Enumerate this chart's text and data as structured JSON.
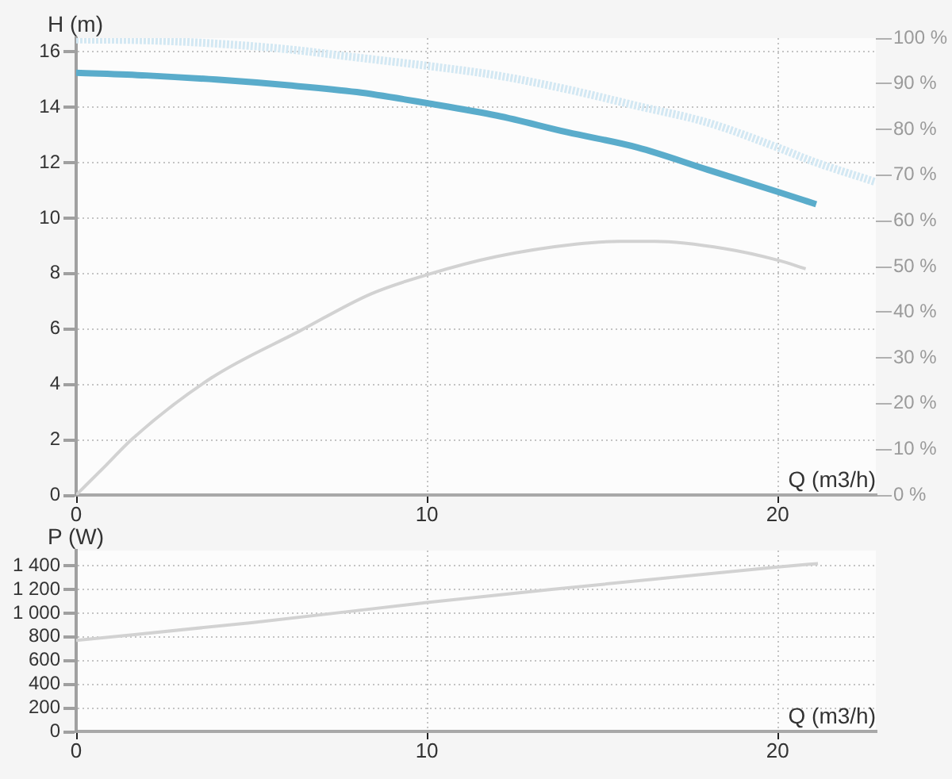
{
  "chart_data": [
    {
      "type": "line",
      "ylabel": "H (m)",
      "xlabel": "Q (m3/h)",
      "xlim": [
        0,
        22.8
      ],
      "xticks": [
        0,
        10,
        20
      ],
      "ylim": [
        0,
        16.5
      ],
      "yticks": [
        0,
        2,
        4,
        6,
        8,
        10,
        12,
        14,
        16
      ],
      "y2lim": [
        0,
        100
      ],
      "y2ticks": [
        {
          "value": 0,
          "label": "0 %"
        },
        {
          "value": 10,
          "label": "10 %"
        },
        {
          "value": 20,
          "label": "20 %"
        },
        {
          "value": 30,
          "label": "30 %"
        },
        {
          "value": 40,
          "label": "40 %"
        },
        {
          "value": 50,
          "label": "50 %"
        },
        {
          "value": 60,
          "label": "60 %"
        },
        {
          "value": 70,
          "label": "70 %"
        },
        {
          "value": 80,
          "label": "80 %"
        },
        {
          "value": 90,
          "label": "90 %"
        },
        {
          "value": 100,
          "label": "100 %"
        }
      ],
      "grid": true,
      "marker": "none",
      "series": [
        {
          "color": "#5aaccb",
          "x": [
            0,
            2,
            4,
            6,
            8,
            10,
            12,
            14,
            16,
            18,
            20,
            21.1
          ],
          "values": [
            15.25,
            15.15,
            15.0,
            14.8,
            14.55,
            14.15,
            13.7,
            13.1,
            12.55,
            11.75,
            10.95,
            10.5
          ]
        },
        {
          "color": "#d3e8f3",
          "line_style": "dotted",
          "x": [
            0,
            2,
            4,
            6,
            8,
            10,
            12,
            14,
            16,
            18,
            20,
            21,
            22.8
          ],
          "values": [
            16.45,
            16.42,
            16.3,
            16.1,
            15.8,
            15.5,
            15.15,
            14.65,
            14.05,
            13.45,
            12.55,
            12.05,
            11.3
          ]
        },
        {
          "color": "#d2d2d2",
          "axis": "y2",
          "x": [
            0,
            0.85,
            1.6,
            3.85,
            6.4,
            8.4,
            10,
            12,
            14.25,
            15.5,
            16.5,
            18.5,
            20,
            20.8
          ],
          "values": [
            0,
            6.5,
            12.3,
            25.6,
            36,
            44,
            48.2,
            52.2,
            54.9,
            55.5,
            55.5,
            53.9,
            51.4,
            49.5
          ]
        }
      ]
    },
    {
      "type": "line",
      "ylabel": "P (W)",
      "xlabel": "Q (m3/h)",
      "xlim": [
        0,
        22.8
      ],
      "xticks": [
        0,
        10,
        20
      ],
      "ylim": [
        0,
        1530
      ],
      "yticks": [
        0,
        200,
        400,
        600,
        800,
        {
          "value": 1000,
          "label": "1 000"
        },
        {
          "value": 1200,
          "label": "1 200"
        },
        {
          "value": 1400,
          "label": "1 400"
        }
      ],
      "grid": true,
      "marker": "none",
      "series": [
        {
          "color": "#d2d2d2",
          "x": [
            0,
            5,
            10,
            13.5,
            20,
            21.15
          ],
          "values": [
            770,
            920,
            1090,
            1200,
            1390,
            1420
          ]
        }
      ]
    }
  ]
}
